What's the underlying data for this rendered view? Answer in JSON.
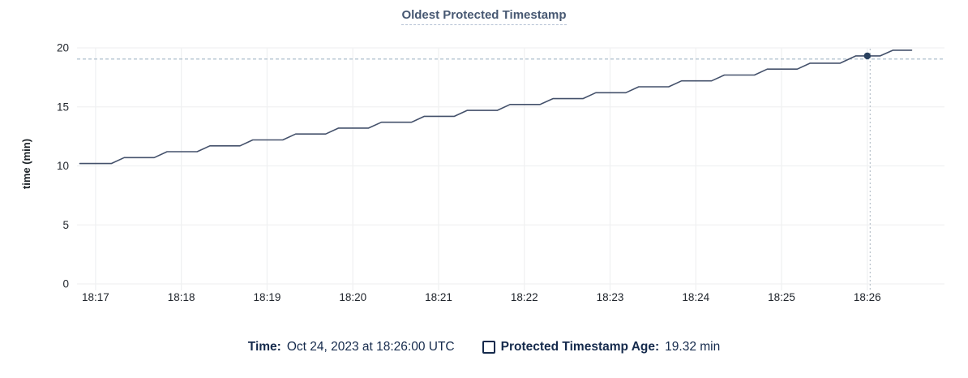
{
  "chart_data": {
    "type": "line",
    "title": "Oldest Protected Timestamp",
    "ylabel": "time (min)",
    "ylim": [
      0,
      20
    ],
    "yticks": [
      0,
      5,
      10,
      15,
      20
    ],
    "x_ticks": [
      "18:17",
      "18:18",
      "18:19",
      "18:20",
      "18:21",
      "18:22",
      "18:23",
      "18:24",
      "18:25",
      "18:26"
    ],
    "x_range": [
      "18:16:47",
      "18:26:54"
    ],
    "grid": true,
    "legend_position": "bottom",
    "series": [
      {
        "name": "Protected Timestamp Age",
        "unit": "min",
        "points": [
          [
            "18:16:49",
            10.2
          ],
          [
            "18:17:11",
            10.2
          ],
          [
            "18:17:20",
            10.7
          ],
          [
            "18:17:41",
            10.7
          ],
          [
            "18:17:50",
            11.2
          ],
          [
            "18:18:11",
            11.2
          ],
          [
            "18:18:20",
            11.7
          ],
          [
            "18:18:41",
            11.7
          ],
          [
            "18:18:50",
            12.2
          ],
          [
            "18:19:11",
            12.2
          ],
          [
            "18:19:20",
            12.7
          ],
          [
            "18:19:41",
            12.7
          ],
          [
            "18:19:50",
            13.2
          ],
          [
            "18:20:11",
            13.2
          ],
          [
            "18:20:20",
            13.7
          ],
          [
            "18:20:41",
            13.7
          ],
          [
            "18:20:50",
            14.2
          ],
          [
            "18:21:11",
            14.2
          ],
          [
            "18:21:20",
            14.7
          ],
          [
            "18:21:41",
            14.7
          ],
          [
            "18:21:50",
            15.2
          ],
          [
            "18:22:11",
            15.2
          ],
          [
            "18:22:20",
            15.7
          ],
          [
            "18:22:41",
            15.7
          ],
          [
            "18:22:50",
            16.2
          ],
          [
            "18:23:11",
            16.2
          ],
          [
            "18:23:20",
            16.7
          ],
          [
            "18:23:41",
            16.7
          ],
          [
            "18:23:50",
            17.2
          ],
          [
            "18:24:11",
            17.2
          ],
          [
            "18:24:20",
            17.7
          ],
          [
            "18:24:41",
            17.7
          ],
          [
            "18:24:50",
            18.2
          ],
          [
            "18:25:11",
            18.2
          ],
          [
            "18:25:20",
            18.7
          ],
          [
            "18:25:41",
            18.7
          ],
          [
            "18:25:52",
            19.32
          ],
          [
            "18:26:09",
            19.32
          ],
          [
            "18:26:18",
            19.8
          ],
          [
            "18:26:31",
            19.8
          ]
        ]
      }
    ],
    "hover": {
      "time": "18:26:00",
      "value": 19.32,
      "cursor_time": "18:26:02",
      "cursor_value": 19.05
    },
    "colors": {
      "title": "#475872",
      "title_underline": "#b4c1d4",
      "line": "#44516b",
      "dot": "#29405e",
      "grid": "#f0f1f2",
      "crosshair_h": "#a4b7c6",
      "crosshair_v": "#b9c2cb",
      "axis_text": "#22272e",
      "legend_text": "#152a4c"
    }
  },
  "legend": {
    "time_label": "Time:",
    "time_value": "Oct 24, 2023 at 18:26:00 UTC",
    "series_label": "Protected Timestamp Age:",
    "series_value": "19.32 min"
  }
}
